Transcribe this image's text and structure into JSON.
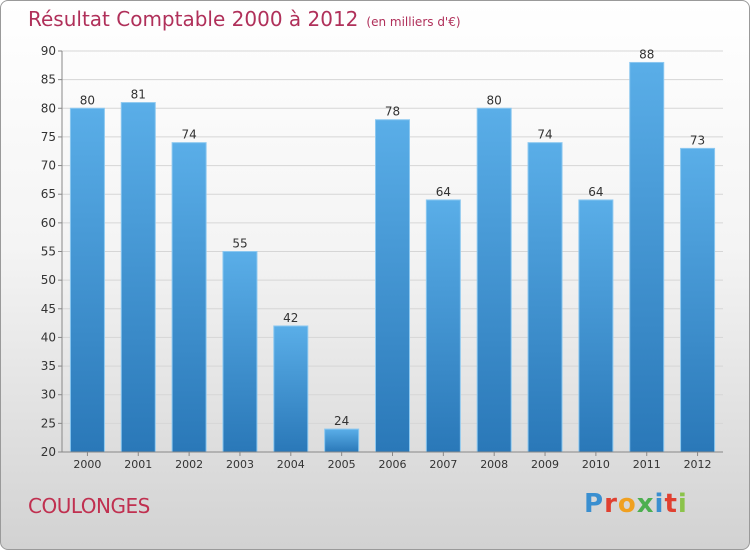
{
  "header": {
    "title": "Résultat Comptable 2000 à 2012",
    "unit": "(en milliers d'€)"
  },
  "footer": {
    "commune": "COULONGES",
    "logo_letters": [
      "P",
      "r",
      "o",
      "x",
      "i",
      "t",
      "i"
    ],
    "logo_colors": [
      "#3a8fd0",
      "#e04030",
      "#f0a020",
      "#4caf50",
      "#3a8fd0",
      "#e04030",
      "#8bc34a"
    ]
  },
  "colors": {
    "bar_top": "#5aaee8",
    "bar_bottom": "#2a78b8",
    "grid": "#d6d6d6",
    "axis": "#888888"
  },
  "chart_data": {
    "type": "bar",
    "title": "Résultat Comptable 2000 à 2012",
    "ylabel": "(en milliers d'€)",
    "xlabel": "",
    "categories": [
      "2000",
      "2001",
      "2002",
      "2003",
      "2004",
      "2005",
      "2006",
      "2007",
      "2008",
      "2009",
      "2010",
      "2011",
      "2012"
    ],
    "values": [
      80,
      81,
      74,
      55,
      42,
      24,
      78,
      64,
      80,
      74,
      64,
      88,
      73
    ],
    "ylim": [
      20,
      90
    ],
    "yticks": [
      20,
      25,
      30,
      35,
      40,
      45,
      50,
      55,
      60,
      65,
      70,
      75,
      80,
      85,
      90
    ],
    "grid": true
  }
}
